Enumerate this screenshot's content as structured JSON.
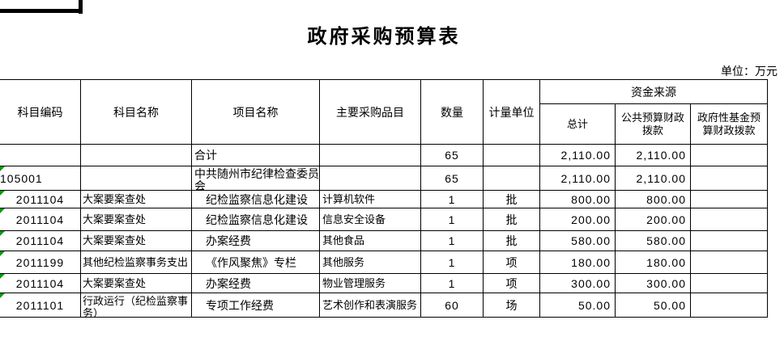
{
  "page": {
    "title": "政府采购预算表",
    "unit_note": "单位：万元"
  },
  "colors": {
    "border": "#000000",
    "error_triangle": "#00a000",
    "selection_fragment": "#000000"
  },
  "table": {
    "headers": {
      "subject_code": "科目编码",
      "subject_name": "科目名称",
      "project_name": "项目名称",
      "procurement_items": "主要采购品目",
      "quantity": "数量",
      "measure_unit": "计量单位",
      "funding_source": "资金来源",
      "total": "总计",
      "public_budget": "公共预算财政拨款",
      "gov_fund_budget": "政府性基金预算财政拨款"
    },
    "rows": [
      {
        "code": "",
        "name": "",
        "project": "合计",
        "item": "",
        "qty": "65",
        "unit": "",
        "total": "2,110.00",
        "public": "2,110.00",
        "fund": "",
        "code_flag": false
      },
      {
        "code": "105001",
        "name": "",
        "project": "中共随州市纪律检查委员会",
        "item": "",
        "qty": "65",
        "unit": "",
        "total": "2,110.00",
        "public": "2,110.00",
        "fund": "",
        "code_flag": true
      },
      {
        "code": "2011104",
        "name": "大案要案查处",
        "project": "纪检监察信息化建设",
        "item": "计算机软件",
        "qty": "1",
        "unit": "批",
        "total": "800.00",
        "public": "800.00",
        "fund": "",
        "code_flag": true
      },
      {
        "code": "2011104",
        "name": "大案要案查处",
        "project": "纪检监察信息化建设",
        "item": "信息安全设备",
        "qty": "1",
        "unit": "批",
        "total": "200.00",
        "public": "200.00",
        "fund": "",
        "code_flag": true
      },
      {
        "code": "2011104",
        "name": "大案要案查处",
        "project": "办案经费",
        "item": "其他食品",
        "qty": "1",
        "unit": "批",
        "total": "580.00",
        "public": "580.00",
        "fund": "",
        "code_flag": true
      },
      {
        "code": "2011199",
        "name": "其他纪检监察事务支出",
        "project": "《作风聚焦》专栏",
        "item": "其他服务",
        "qty": "1",
        "unit": "项",
        "total": "180.00",
        "public": "180.00",
        "fund": "",
        "code_flag": true
      },
      {
        "code": "2011104",
        "name": "大案要案查处",
        "project": "办案经费",
        "item": "物业管理服务",
        "qty": "1",
        "unit": "项",
        "total": "300.00",
        "public": "300.00",
        "fund": "",
        "code_flag": true
      },
      {
        "code": "2011101",
        "name": "行政运行（纪检监察事务）",
        "project": "专项工作经费",
        "item": "艺术创作和表演服务",
        "qty": "60",
        "unit": "场",
        "total": "50.00",
        "public": "50.00",
        "fund": "",
        "code_flag": true
      }
    ]
  }
}
